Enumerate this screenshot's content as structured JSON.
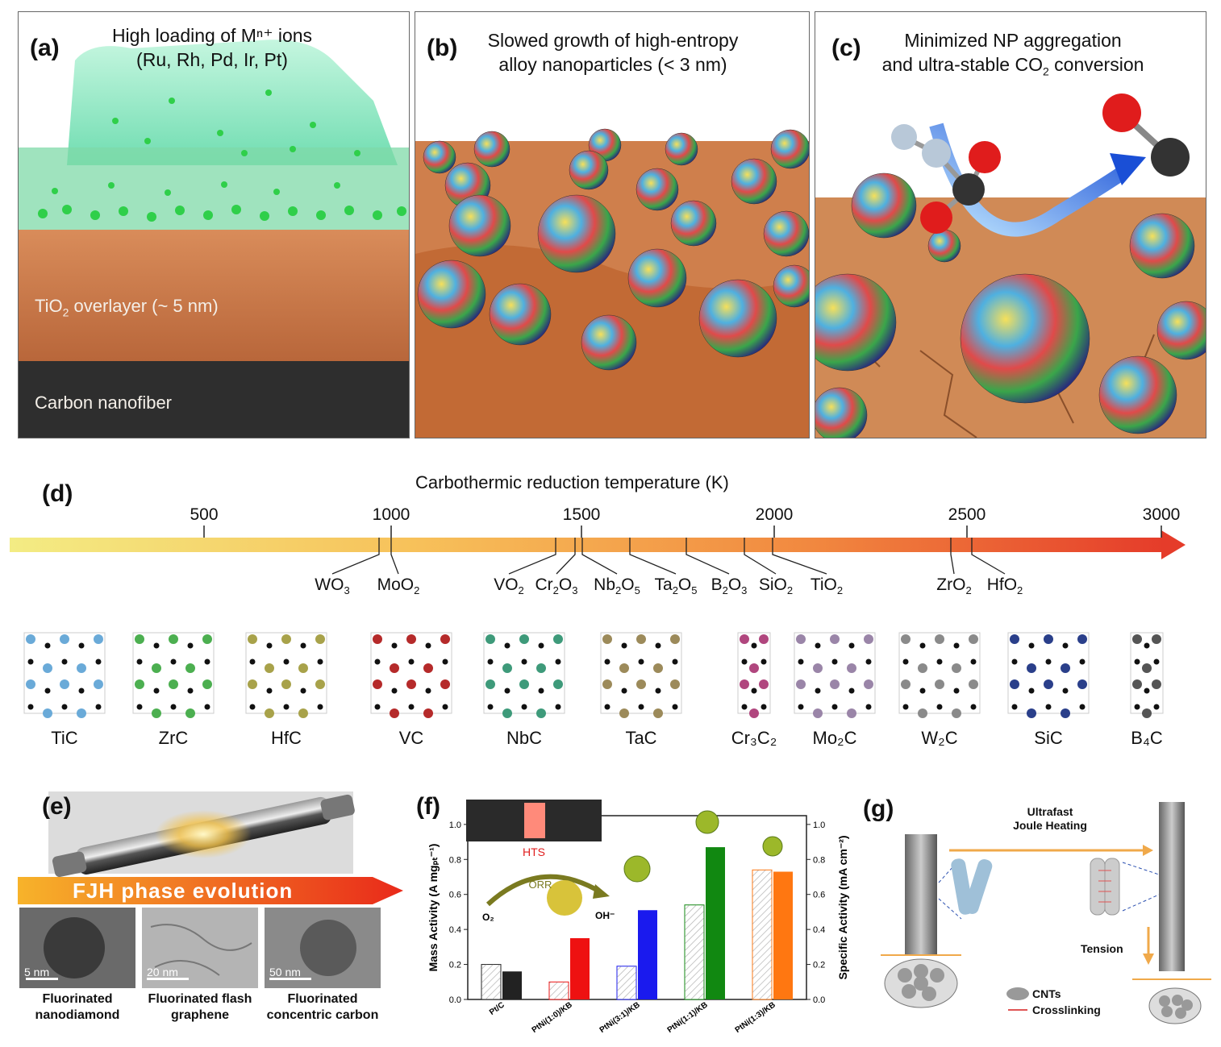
{
  "panel_a": {
    "label": "(a)",
    "title_line1": "High loading of Mⁿ⁺ ions",
    "title_line2": "(Ru, Rh, Pd, Ir, Pt)",
    "layer_tio2": "TiO",
    "layer_tio2_sub": "2",
    "layer_tio2_rest": " overlayer (~ 5 nm)",
    "layer_carbon": "Carbon nanofiber"
  },
  "panel_b": {
    "label": "(b)",
    "title_line1": "Slowed growth  of high-entropy",
    "title_line2": "alloy nanoparticles (< 3 nm)"
  },
  "panel_c": {
    "label": "(c)",
    "title_line1": "Minimized NP aggregation",
    "title_line2a": "and ultra-stable CO",
    "title_line2_sub": "2",
    "title_line2b": " conversion"
  },
  "panel_d": {
    "label": "(d)",
    "axis_title": "Carbothermic reduction temperature (K)",
    "ticks": [
      "500",
      "1000",
      "1500",
      "2000",
      "2500",
      "3000"
    ],
    "oxides": [
      {
        "main": "WO",
        "sub": "3"
      },
      {
        "main": "MoO",
        "sub": "2"
      },
      {
        "main": "VO",
        "sub": "2"
      },
      {
        "main": "Cr",
        "sub": "2",
        "main2": "O",
        "sub2": "3"
      },
      {
        "main": "Nb",
        "sub": "2",
        "main2": "O",
        "sub2": "5"
      },
      {
        "main": "Ta",
        "sub": "2",
        "main2": "O",
        "sub2": "5"
      },
      {
        "main": "B",
        "sub": "2",
        "main2": "O",
        "sub2": "3"
      },
      {
        "main": "SiO",
        "sub": "2"
      },
      {
        "main": "TiO",
        "sub": "2"
      },
      {
        "main": "ZrO",
        "sub": "2"
      },
      {
        "main": "HfO",
        "sub": "2"
      }
    ],
    "carbides": [
      {
        "name": "TiC",
        "color": "#6aaad8"
      },
      {
        "name": "ZrC",
        "color": "#4caf50"
      },
      {
        "name": "HfC",
        "color": "#a8a24a"
      },
      {
        "name": "VC",
        "color": "#b52a2a"
      },
      {
        "name": "NbC",
        "color": "#3e9a7a"
      },
      {
        "name": "TaC",
        "color": "#9c8a5a"
      },
      {
        "name": "Cr₃C₂",
        "color": "#b0467e"
      },
      {
        "name": "Mo₂C",
        "color": "#9a85a8"
      },
      {
        "name": "W₂C",
        "color": "#8a8a8a"
      },
      {
        "name": "SiC",
        "color": "#2a3f8a"
      },
      {
        "name": "B₄C",
        "color": "#555555"
      }
    ]
  },
  "panel_e": {
    "label": "(e)",
    "banner": "FJH phase evolution",
    "images": [
      {
        "scale": "5 nm",
        "caption_line1": "Fluorinated",
        "caption_line2": "nanodiamond"
      },
      {
        "scale": "20 nm",
        "caption_line1": "Fluorinated flash",
        "caption_line2": "graphene"
      },
      {
        "scale": "50 nm",
        "caption_line1": "Fluorinated",
        "caption_line2": "concentric carbon"
      }
    ]
  },
  "panel_f": {
    "label": "(f)",
    "inset_label": "HTS",
    "orr_label": "ORR",
    "o2_label": "O₂",
    "oh_label": "OH⁻",
    "chart_data": {
      "type": "bar",
      "categories": [
        "Pt/C",
        "PtNi(1:0)/KB",
        "PtNi(3:1)/KB",
        "PtNi(1:1)/KB",
        "PtNi(1:3)/KB"
      ],
      "series": [
        {
          "name": "Mass Activity",
          "values": [
            0.2,
            0.1,
            0.19,
            0.54,
            0.74
          ],
          "style": "hatched"
        },
        {
          "name": "Specific Activity",
          "values": [
            0.16,
            0.35,
            0.51,
            0.87,
            0.73
          ],
          "style": "solid"
        }
      ],
      "colors": [
        "#222222",
        "#ee1111",
        "#1a1aee",
        "#118811",
        "#ff7711"
      ],
      "ylabel_left": "Mass Activity (A mgₚₜ⁻¹)",
      "ylabel_right": "Specific Activity (mA cm⁻²)",
      "ylim": [
        0,
        1.05
      ],
      "yticks": [
        "0.0",
        "0.2",
        "0.4",
        "0.6",
        "0.8",
        "1.0"
      ]
    }
  },
  "panel_g": {
    "label": "(g)",
    "arrow_label_line1": "Ultrafast",
    "arrow_label_line2": "Joule Heating",
    "tension": "Tension",
    "legend_cnts": "CNTs",
    "legend_crosslinking": "Crosslinking"
  }
}
